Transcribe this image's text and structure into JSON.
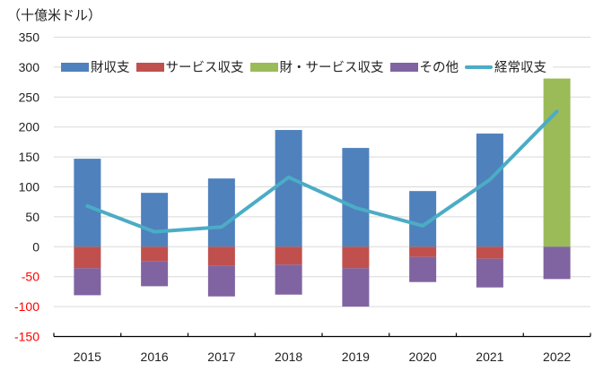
{
  "chart_data": {
    "type": "bar",
    "stacked": true,
    "title": "",
    "unit_label": "（十億米ドル）",
    "xlabel": "",
    "ylabel": "（十億米ドル）",
    "ylim": [
      -150,
      350
    ],
    "ytick_step": 50,
    "yticks": [
      "350",
      "300",
      "250",
      "200",
      "150",
      "100",
      "50",
      "0",
      "-50",
      "-100",
      "-150"
    ],
    "negative_tick_color": "#ff0000",
    "grid": true,
    "legend_position": "top",
    "categories": [
      "2015",
      "2016",
      "2017",
      "2018",
      "2019",
      "2020",
      "2021",
      "2022"
    ],
    "series": [
      {
        "name": "財収支",
        "type": "bar",
        "color": "#4f81bd",
        "values": [
          147,
          90,
          114,
          195,
          165,
          93,
          189,
          null
        ]
      },
      {
        "name": "サービス収支",
        "type": "bar",
        "color": "#c0504d",
        "values": [
          -36,
          -24,
          -32,
          -30,
          -36,
          -17,
          -20,
          null
        ]
      },
      {
        "name": "財・サービス収支",
        "type": "bar",
        "color": "#9bbb59",
        "values": [
          null,
          null,
          null,
          null,
          null,
          null,
          null,
          281
        ]
      },
      {
        "name": "その他",
        "type": "bar",
        "color": "#8064a2",
        "values": [
          -45,
          -42,
          -51,
          -50,
          -64,
          -42,
          -48,
          -54
        ]
      },
      {
        "name": "経常収支",
        "type": "line",
        "color": "#4bacc6",
        "values": [
          68,
          25,
          33,
          116,
          65,
          35,
          112,
          226
        ]
      }
    ]
  }
}
